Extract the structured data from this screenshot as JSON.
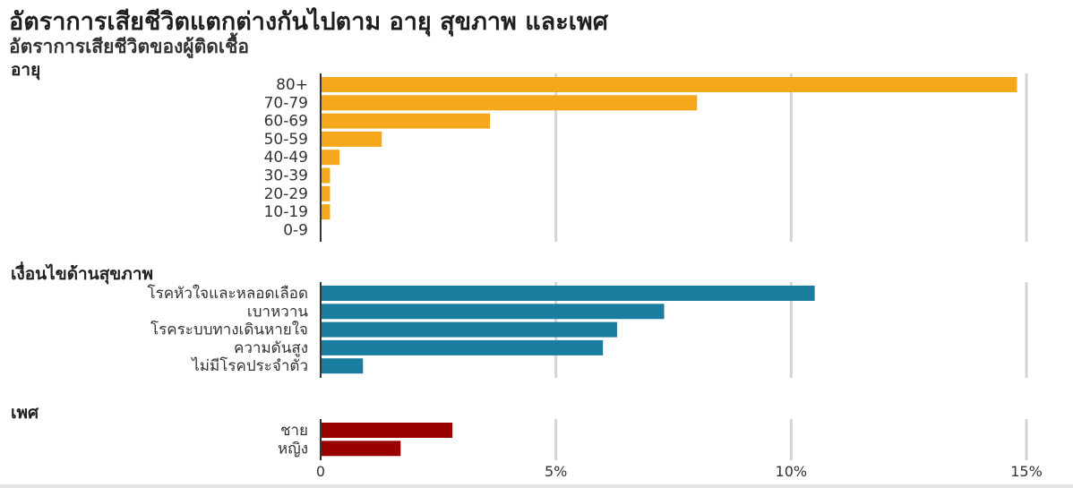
{
  "title": "อัตราการเสียชีวิตแตกต่างกันไปตาม อายุ สุขภาพ และเพศ",
  "subtitle": "อัตราการเสียชีวิตของผู้ติดเชื้อ",
  "chart_data": {
    "type": "bar",
    "orientation": "horizontal",
    "xlim": [
      0,
      15
    ],
    "x_ticks": [
      0,
      5,
      10,
      15
    ],
    "x_tick_labels": [
      "0",
      "5%",
      "10%",
      "15%"
    ],
    "grid": true,
    "groups": [
      {
        "name": "อายุ",
        "color": "#f5a81c",
        "categories": [
          "80+",
          "70-79",
          "60-69",
          "50-59",
          "40-49",
          "30-39",
          "20-29",
          "10-19",
          "0-9"
        ],
        "values": [
          14.8,
          8.0,
          3.6,
          1.3,
          0.4,
          0.2,
          0.2,
          0.2,
          0.0
        ]
      },
      {
        "name": "เงื่อนไขด้านสุขภาพ",
        "color": "#1a7da0",
        "categories": [
          "โรคหัวใจและหลอดเลือด",
          "เบาหวาน",
          "โรคระบบทางเดินหายใจ",
          "ความดันสูง",
          "ไม่มีโรคประจำตัว"
        ],
        "values": [
          10.5,
          7.3,
          6.3,
          6.0,
          0.9
        ]
      },
      {
        "name": "เพศ",
        "color": "#9b0000",
        "categories": [
          "ชาย",
          "หญิง"
        ],
        "values": [
          2.8,
          1.7
        ]
      }
    ]
  }
}
